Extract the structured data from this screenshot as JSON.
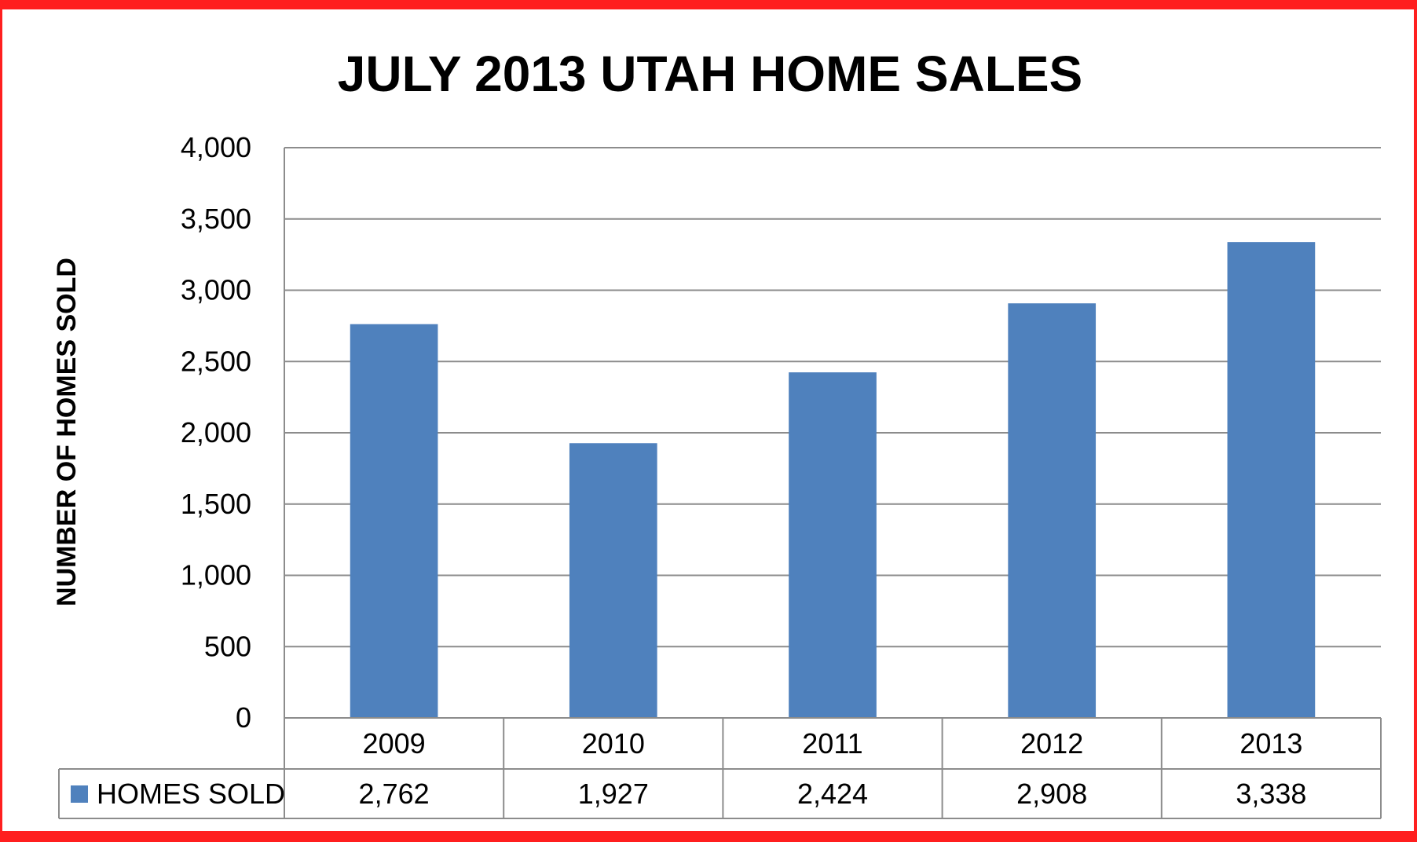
{
  "colors": {
    "frame_border": "#ff1f1f",
    "bar_fill": "#4f81bd",
    "gridline": "#8c8c8c",
    "background": "#ffffff"
  },
  "chart_data": {
    "type": "bar",
    "title": "JULY 2013 UTAH HOME SALES",
    "xlabel": "",
    "ylabel": "NUMBER OF HOMES SOLD",
    "categories": [
      "2009",
      "2010",
      "2011",
      "2012",
      "2013"
    ],
    "series": [
      {
        "name": "HOMES SOLD",
        "values": [
          2762,
          1927,
          2424,
          2908,
          3338
        ],
        "labels": [
          "2,762",
          "1,927",
          "2,424",
          "2,908",
          "3,338"
        ]
      }
    ],
    "ylim": [
      0,
      4000
    ],
    "yticks": [
      0,
      500,
      1000,
      1500,
      2000,
      2500,
      3000,
      3500,
      4000
    ],
    "ytick_labels": [
      "0",
      "500",
      "1,000",
      "1,500",
      "2,000",
      "2,500",
      "3,000",
      "3,500",
      "4,000"
    ],
    "grid": true,
    "legend": "data-table"
  }
}
